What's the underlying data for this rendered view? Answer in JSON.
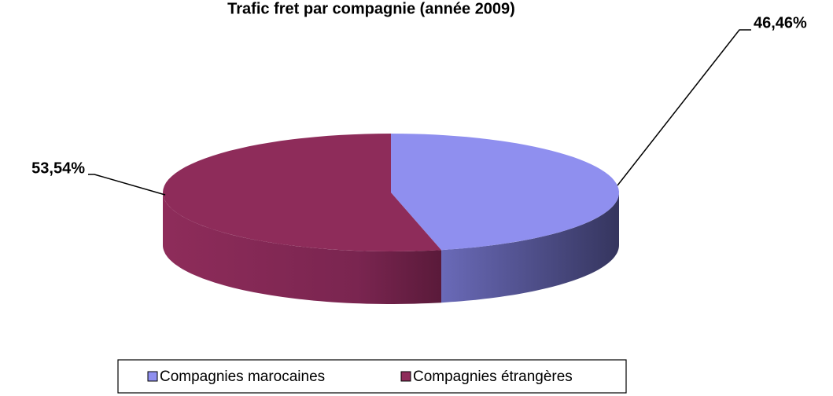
{
  "chart_data": {
    "type": "pie",
    "title": "Trafic fret par compagnie (année 2009)",
    "labels": [
      "Compagnies marocaines",
      "Compagnies étrangères"
    ],
    "values": [
      46.46,
      53.54
    ],
    "value_labels": [
      "46,46%",
      "53,54%"
    ],
    "colors": [
      "#8f8fef",
      "#8e2c5a"
    ],
    "legend": "bottom"
  }
}
